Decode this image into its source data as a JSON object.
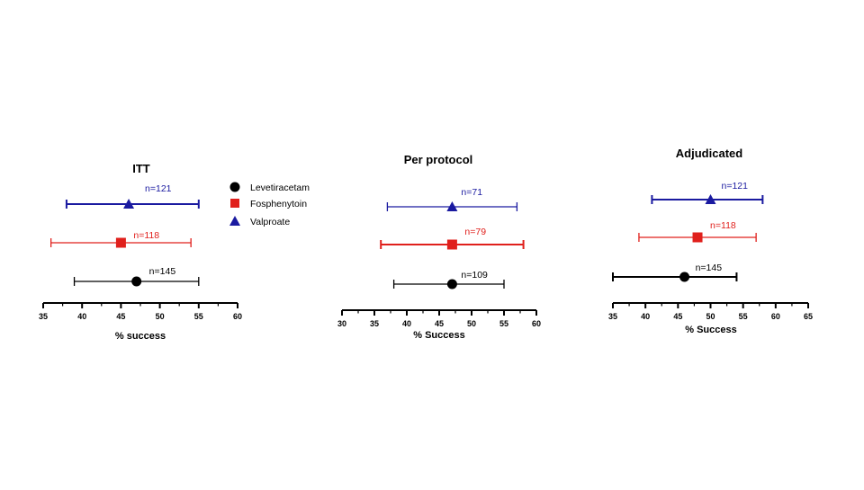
{
  "colors": {
    "Levetiracetam": "#000000",
    "Fosphenytoin": "#e0201c",
    "Valproate": "#1a1aa0",
    "axis": "#000000"
  },
  "legend": {
    "entries": [
      {
        "label": "Levetiracetam",
        "marker": "circle"
      },
      {
        "label": "Fosphenytoin",
        "marker": "square"
      },
      {
        "label": "Valproate",
        "marker": "triangle"
      }
    ]
  },
  "chart_data": [
    {
      "type": "forest",
      "title": "ITT",
      "xlabel": "% success",
      "xlim": [
        35,
        60
      ],
      "ticks": [
        35,
        40,
        45,
        50,
        55,
        60
      ],
      "series": [
        {
          "name": "Valproate",
          "estimate": 46,
          "ci": [
            38,
            55
          ],
          "label": "n=121"
        },
        {
          "name": "Fosphenytoin",
          "estimate": 45,
          "ci": [
            36,
            54
          ],
          "label": "n=118"
        },
        {
          "name": "Levetiracetam",
          "estimate": 47,
          "ci": [
            39,
            55
          ],
          "label": "n=145"
        }
      ]
    },
    {
      "type": "forest",
      "title": "Per protocol",
      "xlabel": "% Success",
      "xlim": [
        30,
        60
      ],
      "ticks": [
        30,
        35,
        40,
        45,
        50,
        55,
        60
      ],
      "series": [
        {
          "name": "Valproate",
          "estimate": 47,
          "ci": [
            37,
            57
          ],
          "label": "n=71"
        },
        {
          "name": "Fosphenytoin",
          "estimate": 47,
          "ci": [
            36,
            58
          ],
          "label": "n=79"
        },
        {
          "name": "Levetiracetam",
          "estimate": 47,
          "ci": [
            38,
            55
          ],
          "label": "n=109"
        }
      ]
    },
    {
      "type": "forest",
      "title": "Adjudicated",
      "xlabel": "% Success",
      "xlim": [
        35,
        65
      ],
      "ticks": [
        35,
        40,
        45,
        50,
        55,
        60,
        65
      ],
      "series": [
        {
          "name": "Valproate",
          "estimate": 50,
          "ci": [
            41,
            58
          ],
          "label": "n=121"
        },
        {
          "name": "Fosphenytoin",
          "estimate": 48,
          "ci": [
            39,
            57
          ],
          "label": "n=118"
        },
        {
          "name": "Levetiracetam",
          "estimate": 46,
          "ci": [
            35,
            54
          ],
          "label": "n=145"
        }
      ]
    }
  ]
}
